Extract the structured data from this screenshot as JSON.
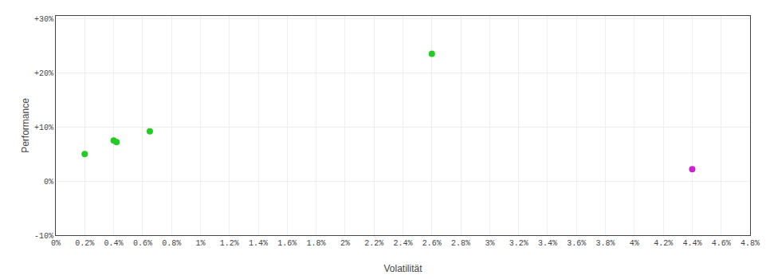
{
  "chart_data": {
    "type": "scatter",
    "xlabel": "Volatilität",
    "ylabel": "Performance",
    "series": [
      {
        "color": "#22cc22",
        "x": [
          0.002,
          0.004,
          0.0042,
          0.0065,
          0.026
        ],
        "values": [
          0.05,
          0.075,
          0.072,
          0.092,
          0.235
        ]
      },
      {
        "color": "#cc22cc",
        "x": [
          0.044
        ],
        "values": [
          0.022
        ]
      }
    ],
    "xlim": [
      0.0,
      0.048
    ],
    "ylim": [
      -0.1,
      0.305
    ],
    "xticks": [
      {
        "value": 0.0,
        "label": "0%"
      },
      {
        "value": 0.002,
        "label": "0.2%"
      },
      {
        "value": 0.004,
        "label": "0.4%"
      },
      {
        "value": 0.006,
        "label": "0.6%"
      },
      {
        "value": 0.008,
        "label": "0.8%"
      },
      {
        "value": 0.01,
        "label": "1%"
      },
      {
        "value": 0.012,
        "label": "1.2%"
      },
      {
        "value": 0.014,
        "label": "1.4%"
      },
      {
        "value": 0.016,
        "label": "1.6%"
      },
      {
        "value": 0.018,
        "label": "1.8%"
      },
      {
        "value": 0.02,
        "label": "2%"
      },
      {
        "value": 0.022,
        "label": "2.2%"
      },
      {
        "value": 0.024,
        "label": "2.4%"
      },
      {
        "value": 0.026,
        "label": "2.6%"
      },
      {
        "value": 0.028,
        "label": "2.8%"
      },
      {
        "value": 0.03,
        "label": "3%"
      },
      {
        "value": 0.032,
        "label": "3.2%"
      },
      {
        "value": 0.034,
        "label": "3.4%"
      },
      {
        "value": 0.036,
        "label": "3.6%"
      },
      {
        "value": 0.038,
        "label": "3.8%"
      },
      {
        "value": 0.04,
        "label": "4%"
      },
      {
        "value": 0.042,
        "label": "4.2%"
      },
      {
        "value": 0.044,
        "label": "4.4%"
      },
      {
        "value": 0.046,
        "label": "4.6%"
      },
      {
        "value": 0.048,
        "label": "4.8%"
      }
    ],
    "yticks": [
      {
        "value": -0.1,
        "label": "-10%"
      },
      {
        "value": 0.0,
        "label": "0%"
      },
      {
        "value": 0.1,
        "label": "+10%"
      },
      {
        "value": 0.2,
        "label": "+20%"
      },
      {
        "value": 0.3,
        "label": "+30%"
      }
    ],
    "grid": true
  }
}
